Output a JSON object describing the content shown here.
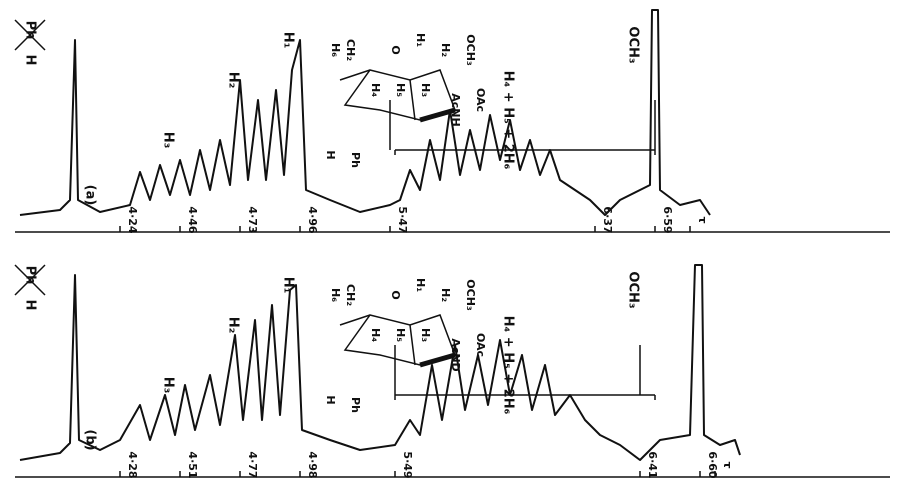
{
  "panels": [
    {
      "label": "(a)",
      "ticks": [
        "4·24",
        "4·46",
        "4·73",
        "4·96",
        "5·47",
        "6·37",
        "6·59",
        "τ"
      ],
      "peaks": {
        "ph": "Ph",
        "h": "H",
        "h1": "H₁",
        "h2": "H₂",
        "h3": "H₃",
        "group": "H₄ + H₅ + 2H₆",
        "och3": "OCH₃"
      },
      "structure": [
        "H",
        "Ph",
        "H₆",
        "CH₂",
        "O",
        "H₄",
        "H₅",
        "H₃",
        "H₁",
        "H₂",
        "OCH₃",
        "OAc",
        "AcNH"
      ]
    },
    {
      "label": "(b)",
      "ticks": [
        "4·28",
        "4·51",
        "4·77",
        "4·98",
        "5·49",
        "6·41",
        "6·60",
        "τ"
      ],
      "peaks": {
        "ph": "Ph",
        "h": "H",
        "h1": "H₁",
        "h2": "H₂",
        "h3": "H₃",
        "group": "H₄ + H₅ + 2H₆",
        "och3": "OCH₃"
      },
      "structure": [
        "H",
        "Ph",
        "H₆",
        "CH₂",
        "O",
        "H₄",
        "H₅",
        "H₃",
        "H₁",
        "H₂",
        "OCH₃",
        "OAc",
        "AcND"
      ]
    }
  ]
}
